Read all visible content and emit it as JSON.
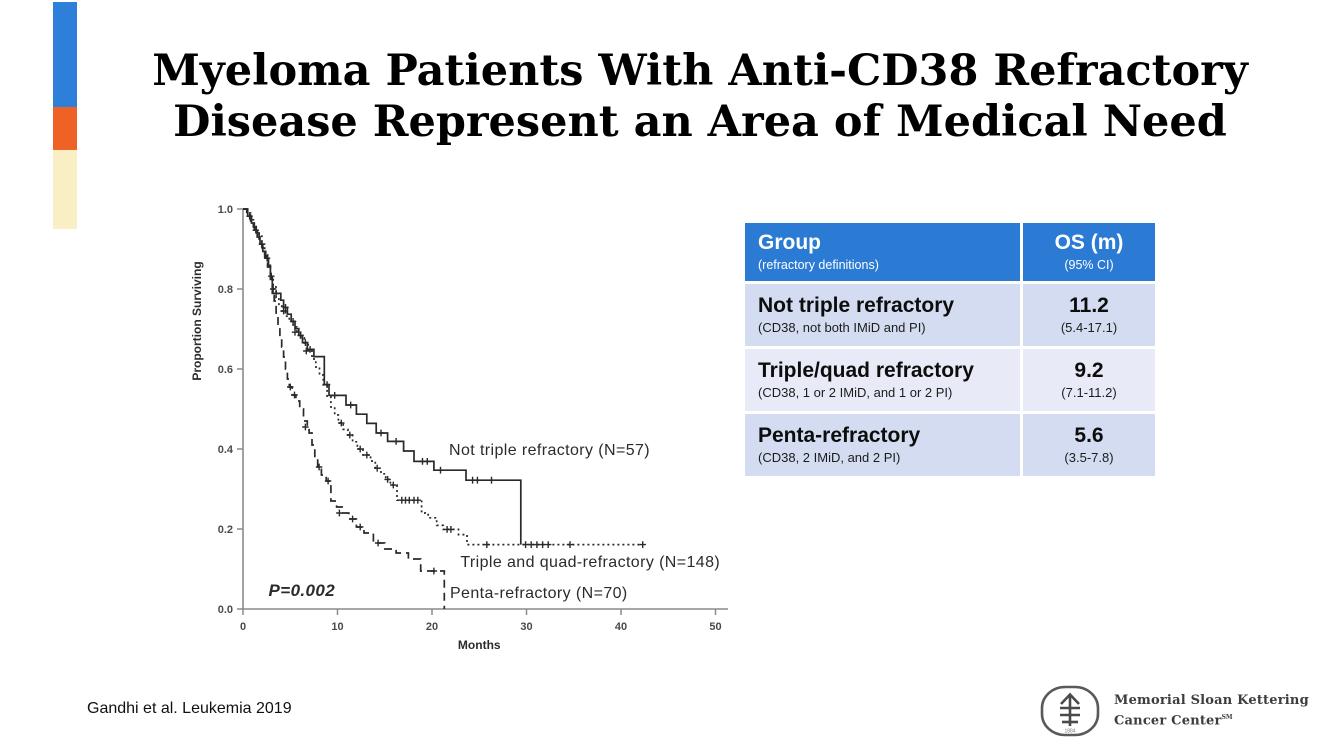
{
  "slide": {
    "title_line1": "Myeloma Patients With Anti-CD38 Refractory",
    "title_line2": "Disease Represent an Area of Medical Need",
    "citation": "Gandhi et al.  Leukemia 2019"
  },
  "accent_colors": {
    "blue": "#2e7fd9",
    "orange": "#ee6325",
    "cream": "#faeec4"
  },
  "table": {
    "colors": {
      "header_bg": "#2b7bd4",
      "row_dark": "#d3dcf0",
      "row_light": "#e8ebf7"
    },
    "header": {
      "group": "Group",
      "group_sub": "(refractory definitions)",
      "os": "OS (m)",
      "os_sub": "(95% CI)"
    },
    "rows": [
      {
        "name": "Not triple refractory",
        "name_sub": "(CD38, not both IMiD and PI)",
        "os": "11.2",
        "os_sub": "(5.4-17.1)"
      },
      {
        "name": "Triple/quad refractory",
        "name_sub": "(CD38, 1 or 2 IMiD, and 1 or 2 PI)",
        "os": "9.2",
        "os_sub": "(7.1-11.2)"
      },
      {
        "name": "Penta-refractory",
        "name_sub": "(CD38, 2 IMiD, and 2 PI)",
        "os": "5.6",
        "os_sub": "(3.5-7.8)"
      }
    ]
  },
  "chart_data": {
    "type": "line",
    "subtype": "kaplan-meier-step",
    "title": "",
    "xlabel": "Months",
    "ylabel": "Proportion Surviving",
    "xlim": [
      0,
      50
    ],
    "ylim": [
      0,
      1
    ],
    "x_ticks": [
      0,
      10,
      20,
      30,
      40,
      50
    ],
    "y_ticks": [
      0.0,
      0.2,
      0.4,
      0.6,
      0.8,
      1.0
    ],
    "grid": false,
    "legend_position": "inline-labels",
    "line_color": "#2a2a2a",
    "series": [
      {
        "name": "Not triple refractory (N=57)",
        "style": "solid",
        "points": [
          [
            0,
            1.0
          ],
          [
            0.5,
            0.982
          ],
          [
            0.9,
            0.965
          ],
          [
            1.2,
            0.947
          ],
          [
            1.5,
            0.93
          ],
          [
            1.8,
            0.912
          ],
          [
            2.1,
            0.894
          ],
          [
            2.4,
            0.877
          ],
          [
            2.7,
            0.859
          ],
          [
            2.9,
            0.824
          ],
          [
            3.1,
            0.789
          ],
          [
            4.0,
            0.772
          ],
          [
            4.3,
            0.754
          ],
          [
            4.7,
            0.737
          ],
          [
            5.1,
            0.719
          ],
          [
            5.5,
            0.701
          ],
          [
            5.9,
            0.684
          ],
          [
            6.3,
            0.666
          ],
          [
            6.8,
            0.649
          ],
          [
            7.5,
            0.631
          ],
          [
            8.6,
            0.561
          ],
          [
            9.1,
            0.534
          ],
          [
            10.9,
            0.51
          ],
          [
            12.0,
            0.487
          ],
          [
            13.1,
            0.464
          ],
          [
            14.1,
            0.44
          ],
          [
            15.3,
            0.419
          ],
          [
            17.0,
            0.395
          ],
          [
            18.1,
            0.369
          ],
          [
            20.2,
            0.347
          ],
          [
            23.6,
            0.322
          ],
          [
            29.4,
            0.161
          ]
        ],
        "censors": [
          [
            0.7,
            0.982
          ],
          [
            1.35,
            0.947
          ],
          [
            2.0,
            0.912
          ],
          [
            2.55,
            0.877
          ],
          [
            3.5,
            0.789
          ],
          [
            4.5,
            0.754
          ],
          [
            5.3,
            0.719
          ],
          [
            6.1,
            0.684
          ],
          [
            6.6,
            0.666
          ],
          [
            7.1,
            0.649
          ],
          [
            8.9,
            0.561
          ],
          [
            9.7,
            0.534
          ],
          [
            11.4,
            0.51
          ],
          [
            14.6,
            0.44
          ],
          [
            16.2,
            0.419
          ],
          [
            19.0,
            0.369
          ],
          [
            19.5,
            0.369
          ],
          [
            20.9,
            0.347
          ],
          [
            24.3,
            0.322
          ],
          [
            24.8,
            0.322
          ],
          [
            26.3,
            0.322
          ]
        ]
      },
      {
        "name": "Triple and quad-refractory (N=148)",
        "style": "dotted",
        "points": [
          [
            0,
            1.0
          ],
          [
            0.4,
            0.99
          ],
          [
            0.8,
            0.973
          ],
          [
            1.1,
            0.959
          ],
          [
            1.4,
            0.946
          ],
          [
            1.7,
            0.932
          ],
          [
            2.0,
            0.912
          ],
          [
            2.3,
            0.885
          ],
          [
            2.6,
            0.858
          ],
          [
            2.9,
            0.832
          ],
          [
            3.2,
            0.805
          ],
          [
            3.5,
            0.778
          ],
          [
            3.8,
            0.758
          ],
          [
            4.1,
            0.745
          ],
          [
            4.5,
            0.732
          ],
          [
            4.9,
            0.719
          ],
          [
            5.3,
            0.705
          ],
          [
            5.7,
            0.692
          ],
          [
            6.1,
            0.678
          ],
          [
            6.5,
            0.665
          ],
          [
            6.9,
            0.645
          ],
          [
            7.3,
            0.625
          ],
          [
            7.7,
            0.605
          ],
          [
            8.1,
            0.585
          ],
          [
            8.5,
            0.558
          ],
          [
            8.9,
            0.532
          ],
          [
            9.3,
            0.505
          ],
          [
            9.7,
            0.485
          ],
          [
            10.1,
            0.465
          ],
          [
            10.6,
            0.449
          ],
          [
            11.1,
            0.435
          ],
          [
            11.6,
            0.418
          ],
          [
            12.1,
            0.4
          ],
          [
            12.7,
            0.385
          ],
          [
            13.5,
            0.37
          ],
          [
            14.0,
            0.352
          ],
          [
            14.6,
            0.338
          ],
          [
            15.1,
            0.324
          ],
          [
            15.6,
            0.31
          ],
          [
            16.3,
            0.272
          ],
          [
            18.9,
            0.24
          ],
          [
            19.6,
            0.228
          ],
          [
            20.5,
            0.209
          ],
          [
            21.2,
            0.199
          ],
          [
            22.8,
            0.186
          ],
          [
            23.7,
            0.161
          ],
          [
            42.3,
            0.161
          ]
        ],
        "censors": [
          [
            3.0,
            0.832
          ],
          [
            4.3,
            0.745
          ],
          [
            5.5,
            0.692
          ],
          [
            6.7,
            0.645
          ],
          [
            10.4,
            0.465
          ],
          [
            11.3,
            0.435
          ],
          [
            12.4,
            0.4
          ],
          [
            13.1,
            0.385
          ],
          [
            14.2,
            0.352
          ],
          [
            15.3,
            0.324
          ],
          [
            15.9,
            0.31
          ],
          [
            16.8,
            0.272
          ],
          [
            17.2,
            0.272
          ],
          [
            17.6,
            0.272
          ],
          [
            18.1,
            0.272
          ],
          [
            18.5,
            0.272
          ],
          [
            21.6,
            0.199
          ],
          [
            22.0,
            0.199
          ],
          [
            25.8,
            0.161
          ],
          [
            29.9,
            0.161
          ],
          [
            30.5,
            0.161
          ],
          [
            31.1,
            0.161
          ],
          [
            31.7,
            0.161
          ],
          [
            32.3,
            0.161
          ],
          [
            34.6,
            0.161
          ],
          [
            42.3,
            0.161
          ]
        ]
      },
      {
        "name": "Penta-refractory (N=70)",
        "style": "dashed",
        "points": [
          [
            0,
            1.0
          ],
          [
            0.4,
            0.985
          ],
          [
            0.8,
            0.97
          ],
          [
            1.1,
            0.955
          ],
          [
            1.4,
            0.94
          ],
          [
            1.7,
            0.925
          ],
          [
            2.0,
            0.903
          ],
          [
            2.3,
            0.881
          ],
          [
            2.6,
            0.855
          ],
          [
            2.9,
            0.83
          ],
          [
            3.1,
            0.8
          ],
          [
            3.3,
            0.77
          ],
          [
            3.5,
            0.74
          ],
          [
            3.7,
            0.71
          ],
          [
            3.9,
            0.68
          ],
          [
            4.1,
            0.655
          ],
          [
            4.3,
            0.63
          ],
          [
            4.5,
            0.6
          ],
          [
            4.7,
            0.575
          ],
          [
            4.9,
            0.555
          ],
          [
            5.2,
            0.535
          ],
          [
            5.6,
            0.52
          ],
          [
            6.0,
            0.5
          ],
          [
            6.4,
            0.47
          ],
          [
            6.8,
            0.455
          ],
          [
            7.0,
            0.44
          ],
          [
            7.3,
            0.41
          ],
          [
            7.6,
            0.375
          ],
          [
            7.9,
            0.355
          ],
          [
            8.3,
            0.335
          ],
          [
            8.8,
            0.32
          ],
          [
            9.3,
            0.27
          ],
          [
            9.9,
            0.255
          ],
          [
            10.5,
            0.24
          ],
          [
            11.2,
            0.225
          ],
          [
            12.0,
            0.205
          ],
          [
            12.8,
            0.19
          ],
          [
            13.8,
            0.165
          ],
          [
            15.0,
            0.15
          ],
          [
            16.2,
            0.14
          ],
          [
            17.5,
            0.125
          ],
          [
            18.8,
            0.095
          ],
          [
            21.3,
            0.0
          ]
        ],
        "censors": [
          [
            3.2,
            0.8
          ],
          [
            5.0,
            0.555
          ],
          [
            5.45,
            0.535
          ],
          [
            6.6,
            0.455
          ],
          [
            8.05,
            0.355
          ],
          [
            9.0,
            0.32
          ],
          [
            10.2,
            0.24
          ],
          [
            11.6,
            0.225
          ],
          [
            12.4,
            0.205
          ],
          [
            14.3,
            0.165
          ],
          [
            20.2,
            0.095
          ]
        ]
      }
    ],
    "annotations": [
      {
        "text": "Not triple refractory (N=57)",
        "x": 21.8,
        "y": 0.385,
        "italic": false
      },
      {
        "text": "Triple and quad-refractory (N=148)",
        "x": 23.0,
        "y": 0.105,
        "italic": false
      },
      {
        "text": "Penta-refractory (N=70)",
        "x": 21.9,
        "y": 0.028,
        "italic": false
      },
      {
        "text": "P=0.002",
        "x": 2.7,
        "y": 0.032,
        "italic": true
      }
    ]
  },
  "footer": {
    "logo_line1": "Memorial Sloan Kettering",
    "logo_line2": "Cancer Center",
    "logo_sm": "SM",
    "logo_year": "1884"
  }
}
